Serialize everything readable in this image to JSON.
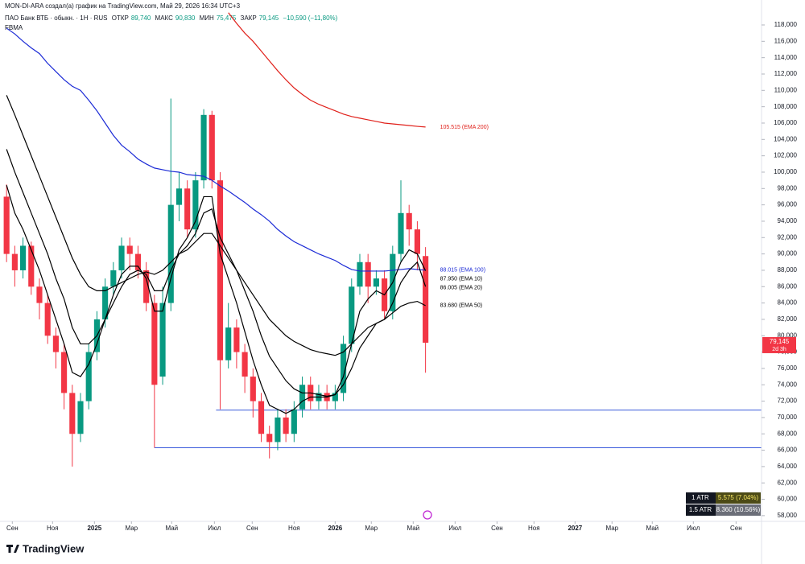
{
  "header": {
    "author_line": "MON-DI-ARA создал(а) график на TradingView.com, Май 29, 2026 16:34 UTC+3",
    "symbol": "ПАО Банк ВТБ · обыкн. · 1Н · RUS",
    "open_label": "ОТКР",
    "open": "89,740",
    "high_label": "МАКС",
    "high": "90,830",
    "low_label": "МИН",
    "low": "75,475",
    "close_label": "ЗАКР",
    "close": "79,145",
    "change": "−10,590 (−11,80%)",
    "indicator": "FBMA"
  },
  "chart_data": {
    "type": "candlestick",
    "up_color": "#089981",
    "down_color": "#f23645",
    "grid": false,
    "open": [
      97,
      90,
      88,
      91,
      86,
      84,
      80,
      78,
      73,
      68,
      72,
      78,
      82,
      86,
      88,
      91,
      90,
      88,
      84,
      75,
      84,
      96,
      98,
      93,
      99,
      107,
      99,
      77,
      81,
      78,
      75,
      72,
      68,
      67,
      70,
      68,
      71,
      74,
      72,
      73,
      72,
      73,
      79,
      86,
      89,
      86,
      87,
      83,
      90,
      95,
      93,
      89.74
    ],
    "high": [
      98.5,
      91,
      92,
      91.5,
      87,
      85,
      81,
      79,
      74,
      73,
      79,
      83,
      87,
      89,
      92,
      92,
      91,
      89,
      85,
      86,
      109,
      100,
      99,
      100,
      107.7,
      107.5,
      100,
      84,
      82,
      79,
      76,
      73,
      69,
      71,
      71,
      72,
      75,
      75,
      74,
      74,
      74,
      80,
      87,
      90,
      90,
      88,
      88,
      91,
      99,
      96,
      94,
      90.83
    ],
    "low": [
      89,
      86,
      87,
      85,
      82,
      79,
      76,
      71,
      64,
      67,
      71,
      77,
      81,
      85,
      87,
      88,
      87,
      83,
      66.3,
      74,
      83,
      94,
      92,
      92,
      98,
      98,
      71,
      76,
      76,
      73,
      70,
      67,
      65,
      66,
      67,
      67,
      70,
      71,
      71,
      71,
      71,
      72,
      78,
      85,
      84,
      85,
      82,
      82,
      89,
      91,
      88,
      75.475
    ],
    "close": [
      90,
      88,
      91,
      86,
      84,
      80,
      78,
      73,
      68,
      72,
      78,
      82,
      86,
      88,
      91,
      90,
      88,
      84,
      74,
      84,
      96,
      98,
      93,
      99,
      107,
      99,
      77,
      81,
      78,
      75,
      72,
      68,
      67,
      70,
      68,
      71,
      74,
      72,
      73,
      72,
      73,
      79,
      86,
      89,
      86,
      87,
      83,
      90,
      95,
      93,
      90,
      79.145
    ],
    "lines": [
      {
        "name": "105.515 (EMA 200)",
        "color": "#e0201a",
        "values": [
          null,
          null,
          null,
          null,
          null,
          null,
          null,
          null,
          null,
          null,
          null,
          null,
          null,
          null,
          null,
          null,
          null,
          null,
          null,
          null,
          null,
          null,
          null,
          null,
          null,
          null,
          null,
          119.5,
          118.2,
          117,
          116,
          114.8,
          113.6,
          112.4,
          111.3,
          110.3,
          109.5,
          108.8,
          108.3,
          107.9,
          107.5,
          107.1,
          106.8,
          106.6,
          106.4,
          106.2,
          106,
          105.9,
          105.8,
          105.7,
          105.6,
          105.515
        ]
      },
      {
        "name": "88.015 (EMA 100)",
        "color": "#1c2bd6",
        "values": [
          117.6,
          116.9,
          116,
          115.2,
          114.5,
          113.3,
          112.3,
          111.3,
          110.5,
          110,
          108.8,
          107.5,
          106,
          104.5,
          103.3,
          102.5,
          101.6,
          101,
          100.5,
          100.3,
          100.1,
          100,
          99.7,
          99.6,
          99.5,
          99,
          98.3,
          97.7,
          97,
          96.3,
          95.5,
          94.8,
          94,
          93,
          92.2,
          91.5,
          91,
          90.5,
          90,
          89.6,
          89.2,
          88.6,
          88.1,
          87.9,
          87.9,
          87.9,
          87.9,
          88,
          88.1,
          88.2,
          88.1,
          88.015
        ]
      },
      {
        "name": "87.950 (EMA 10)",
        "color": "#000000",
        "values": [
          98.4,
          95,
          93,
          90.5,
          88,
          85,
          82,
          79,
          75.5,
          75,
          76.5,
          79,
          82,
          85,
          87.5,
          88.5,
          88.5,
          87,
          83,
          83,
          87,
          90.5,
          92,
          94,
          97,
          97,
          90,
          87,
          84,
          80.5,
          77,
          74,
          71.5,
          71,
          70.5,
          71,
          72,
          72.5,
          72.5,
          72.5,
          72.8,
          75,
          79,
          83,
          84.5,
          85.5,
          85,
          86.5,
          89,
          90.5,
          90,
          87.95
        ]
      },
      {
        "name": "86.005 (EMA 20)",
        "color": "#000000",
        "values": [
          102.8,
          100,
          97.5,
          95,
          92.5,
          90,
          87,
          84.5,
          81,
          79,
          79,
          80,
          82,
          84,
          86,
          87.5,
          88,
          87.5,
          85.5,
          85.5,
          88,
          90,
          91,
          92.5,
          95,
          95.5,
          92,
          90,
          88,
          85.5,
          83,
          80,
          77.5,
          76,
          74.5,
          73.5,
          73,
          73,
          72.8,
          72.6,
          72.8,
          74,
          76,
          78.5,
          80,
          81.5,
          82,
          84,
          86.5,
          88,
          89,
          86.005
        ]
      },
      {
        "name": "83.680 (EMA 50)",
        "color": "#000000",
        "values": [
          109.4,
          107,
          104.5,
          102,
          99.5,
          97,
          94.5,
          92,
          89.5,
          87.5,
          86,
          85.5,
          85.5,
          86,
          86.5,
          87,
          87.5,
          87.8,
          87.5,
          88,
          89,
          90,
          90.5,
          91.5,
          92.5,
          92.5,
          91,
          89.5,
          88,
          86.5,
          85,
          83.5,
          82,
          81,
          80,
          79.3,
          78.8,
          78.3,
          78,
          77.8,
          77.6,
          78,
          79,
          80,
          81,
          81.5,
          82,
          82.8,
          83.6,
          84,
          84.2,
          83.68
        ]
      }
    ],
    "levels": [
      {
        "value": 70.9,
        "x": 25.5,
        "color": "#3b5bdb"
      },
      {
        "value": 66.3,
        "x": 18,
        "color": "#3b5bdb"
      }
    ],
    "last_price": {
      "value": 79.145,
      "label": "79,145",
      "countdown": "2d 3h"
    },
    "xlim": [
      -0.8,
      91.9
    ],
    "ylim": [
      57.3,
      121.05
    ],
    "xticks": [
      {
        "value": 0.7,
        "label": "Сен"
      },
      {
        "value": 5.6,
        "label": "Ноя"
      },
      {
        "value": 10.7,
        "label": "2025"
      },
      {
        "value": 15.2,
        "label": "Мар"
      },
      {
        "value": 20.1,
        "label": "Май"
      },
      {
        "value": 25.3,
        "label": "Июл"
      },
      {
        "value": 29.9,
        "label": "Сен"
      },
      {
        "value": 35,
        "label": "Ноя"
      },
      {
        "value": 40,
        "label": "2026"
      },
      {
        "value": 44.4,
        "label": "Мар"
      },
      {
        "value": 49.5,
        "label": "Май"
      },
      {
        "value": 54.6,
        "label": "Июл"
      },
      {
        "value": 59.7,
        "label": "Сен"
      },
      {
        "value": 64.2,
        "label": "Ноя"
      },
      {
        "value": 69.2,
        "label": "2027"
      },
      {
        "value": 73.7,
        "label": "Мар"
      },
      {
        "value": 78.6,
        "label": "Май"
      },
      {
        "value": 83.6,
        "label": "Июл"
      },
      {
        "value": 88.8,
        "label": "Сен"
      }
    ],
    "yticks": [
      {
        "value": 58,
        "label": "58,000"
      },
      {
        "value": 60,
        "label": "60,000"
      },
      {
        "value": 62,
        "label": "62,000"
      },
      {
        "value": 64,
        "label": "64,000"
      },
      {
        "value": 66,
        "label": "66,000"
      },
      {
        "value": 68,
        "label": "68,000"
      },
      {
        "value": 70,
        "label": "70,000"
      },
      {
        "value": 72,
        "label": "72,000"
      },
      {
        "value": 74,
        "label": "74,000"
      },
      {
        "value": 76,
        "label": "76,000"
      },
      {
        "value": 78,
        "label": "78,000"
      },
      {
        "value": 80,
        "label": "80,000"
      },
      {
        "value": 82,
        "label": "82,000"
      },
      {
        "value": 84,
        "label": "84,000"
      },
      {
        "value": 86,
        "label": "86,000"
      },
      {
        "value": 88,
        "label": "88,000"
      },
      {
        "value": 90,
        "label": "90,000"
      },
      {
        "value": 92,
        "label": "92,000"
      },
      {
        "value": 94,
        "label": "94,000"
      },
      {
        "value": 96,
        "label": "96,000"
      },
      {
        "value": 98,
        "label": "98,000"
      },
      {
        "value": 100,
        "label": "100,000"
      },
      {
        "value": 102,
        "label": "102,000"
      },
      {
        "value": 104,
        "label": "104,000"
      },
      {
        "value": 106,
        "label": "106,000"
      },
      {
        "value": 108,
        "label": "108,000"
      },
      {
        "value": 110,
        "label": "110,000"
      },
      {
        "value": 112,
        "label": "112,000"
      },
      {
        "value": 114,
        "label": "114,000"
      },
      {
        "value": 116,
        "label": "116,000"
      },
      {
        "value": 118,
        "label": "118,000"
      }
    ]
  },
  "atr": [
    {
      "label": "1 ATR",
      "value": "5.575 (7.04%)"
    },
    {
      "label": "1.5 ATR",
      "value": "8.360 (10.56%)"
    }
  ],
  "brand": "TradingView"
}
